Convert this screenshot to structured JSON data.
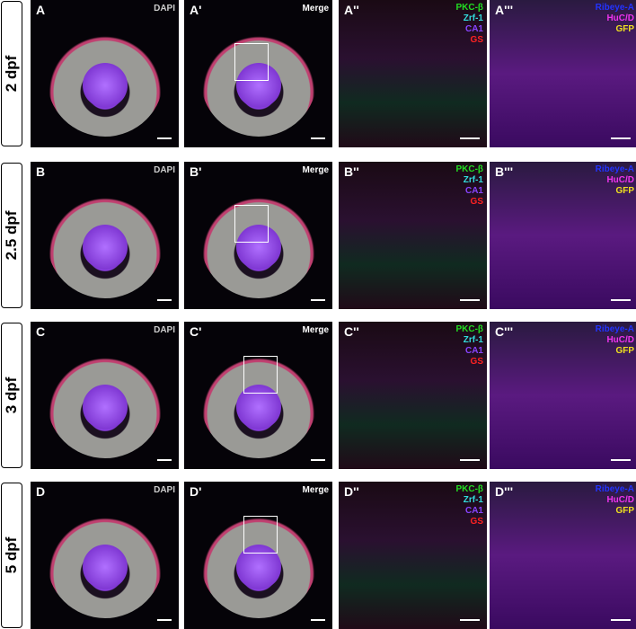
{
  "rows": [
    {
      "stage": "2 dpf",
      "letter": "A"
    },
    {
      "stage": "2.5 dpf",
      "letter": "B"
    },
    {
      "stage": "3 dpf",
      "letter": "C"
    },
    {
      "stage": "5 dpf",
      "letter": "D"
    }
  ],
  "panel_labels": {
    "A": [
      "A",
      "A'",
      "A''",
      "A'''"
    ],
    "B": [
      "B",
      "B'",
      "B''",
      "B'''"
    ],
    "C": [
      "C",
      "C'",
      "C''",
      "C'''"
    ],
    "D": [
      "D",
      "D'",
      "D''",
      "D'''"
    ]
  },
  "channel_tags": {
    "dapi": "DAPI",
    "merge": "Merge"
  },
  "legend_glia": [
    {
      "text": "PKC-β",
      "color": "#22dd22"
    },
    {
      "text": "Zrf-1",
      "color": "#33dddd"
    },
    {
      "text": "CA1",
      "color": "#8844ff"
    },
    {
      "text": "GS",
      "color": "#ff2222"
    }
  ],
  "legend_neuron": [
    {
      "text": "Ribeye-A",
      "color": "#2233ff"
    },
    {
      "text": "HuC/D",
      "color": "#ee33ee"
    },
    {
      "text": "GFP",
      "color": "#f0e020"
    }
  ]
}
